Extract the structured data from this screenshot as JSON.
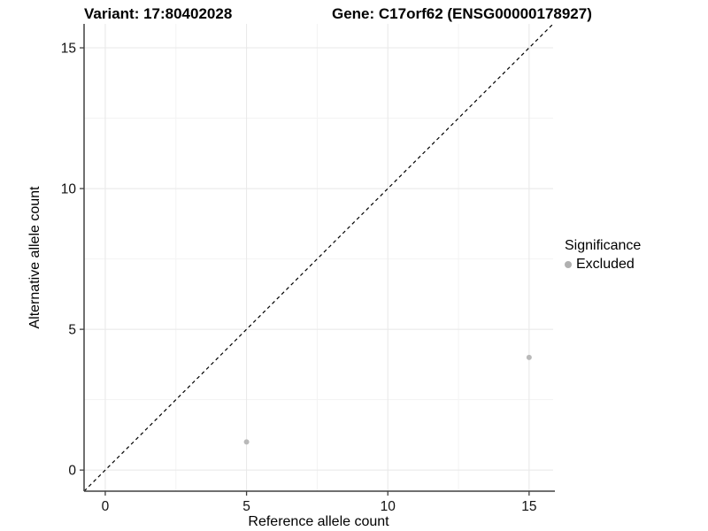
{
  "chart_data": {
    "type": "scatter",
    "title_left": "Variant: 17:80402028",
    "title_right": "Gene: C17orf62 (ENSG00000178927)",
    "xlabel": "Reference allele count",
    "ylabel": "Alternative allele count",
    "xlim": [
      -0.75,
      15.85
    ],
    "ylim": [
      -0.75,
      15.85
    ],
    "x_ticks": [
      0,
      5,
      10,
      15
    ],
    "y_ticks": [
      0,
      5,
      10,
      15
    ],
    "x_minor_ticks": [
      2.5,
      7.5,
      12.5
    ],
    "y_minor_ticks": [
      2.5,
      7.5,
      12.5
    ],
    "grid": true,
    "point_radius": 3,
    "identity_line": {
      "style": "dashed",
      "color": "#000000",
      "slope": 1,
      "intercept": 0
    },
    "series": [
      {
        "name": "Excluded",
        "color": "#b9b9b9",
        "points": [
          {
            "x": 5,
            "y": 1
          },
          {
            "x": 15,
            "y": 4
          }
        ]
      }
    ],
    "legend": {
      "title": "Significance",
      "position": "right",
      "items": [
        {
          "label": "Excluded",
          "color": "#b0b0b0"
        }
      ]
    },
    "colors": {
      "axis_line": "#404040",
      "grid_major": "#e8e8e8",
      "grid_minor": "#f3f3f3",
      "tick_label": "#111111",
      "point": "#b9b9b9",
      "identity": "#000000"
    }
  }
}
